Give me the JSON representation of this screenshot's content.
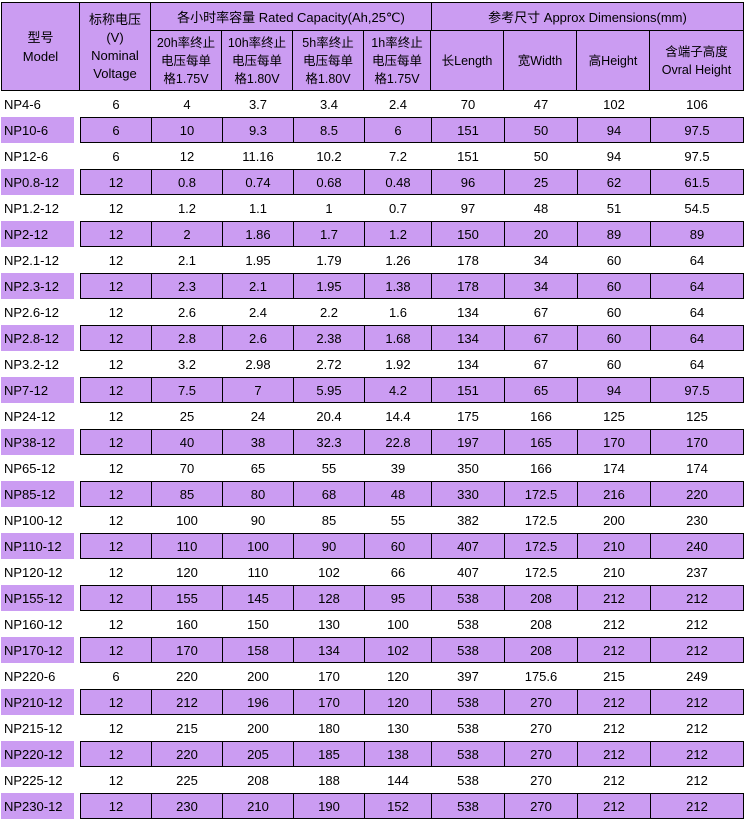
{
  "colors": {
    "row_highlight": "#cb9cf2",
    "header_background": "#cb9cf2",
    "border": "#000000",
    "text": "#000000",
    "page_background": "#ffffff"
  },
  "table": {
    "header": {
      "model": "型号\nModel",
      "voltage": "标称电压\n(V)\nNominal\nVoltage",
      "capacity_group": "各小时率容量 Rated Capacity(Ah,25℃)",
      "dimensions_group": "参考尺寸 Approx Dimensions(mm)",
      "capacity_columns": [
        "20h率终止\n电压每单\n格1.75V",
        "10h率终止\n电压每单\n格1.80V",
        "5h率终止\n电压每单\n格1.80V",
        "1h率终止\n电压每单\n格1.75V"
      ],
      "dimension_columns": [
        "长Length",
        "宽Width",
        "高Height",
        "含端子高度\nOvral Height"
      ]
    },
    "rows": [
      {
        "model": "NP4-6",
        "values": [
          "6",
          "4",
          "3.7",
          "3.4",
          "2.4",
          "70",
          "47",
          "102",
          "106"
        ]
      },
      {
        "model": "NP10-6",
        "values": [
          "6",
          "10",
          "9.3",
          "8.5",
          "6",
          "151",
          "50",
          "94",
          "97.5"
        ]
      },
      {
        "model": "NP12-6",
        "values": [
          "6",
          "12",
          "11.16",
          "10.2",
          "7.2",
          "151",
          "50",
          "94",
          "97.5"
        ]
      },
      {
        "model": "NP0.8-12",
        "values": [
          "12",
          "0.8",
          "0.74",
          "0.68",
          "0.48",
          "96",
          "25",
          "62",
          "61.5"
        ]
      },
      {
        "model": "NP1.2-12",
        "values": [
          "12",
          "1.2",
          "1.1",
          "1",
          "0.7",
          "97",
          "48",
          "51",
          "54.5"
        ]
      },
      {
        "model": "NP2-12",
        "values": [
          "12",
          "2",
          "1.86",
          "1.7",
          "1.2",
          "150",
          "20",
          "89",
          "89"
        ]
      },
      {
        "model": "NP2.1-12",
        "values": [
          "12",
          "2.1",
          "1.95",
          "1.79",
          "1.26",
          "178",
          "34",
          "60",
          "64"
        ]
      },
      {
        "model": "NP2.3-12",
        "values": [
          "12",
          "2.3",
          "2.1",
          "1.95",
          "1.38",
          "178",
          "34",
          "60",
          "64"
        ]
      },
      {
        "model": "NP2.6-12",
        "values": [
          "12",
          "2.6",
          "2.4",
          "2.2",
          "1.6",
          "134",
          "67",
          "60",
          "64"
        ]
      },
      {
        "model": "NP2.8-12",
        "values": [
          "12",
          "2.8",
          "2.6",
          "2.38",
          "1.68",
          "134",
          "67",
          "60",
          "64"
        ]
      },
      {
        "model": "NP3.2-12",
        "values": [
          "12",
          "3.2",
          "2.98",
          "2.72",
          "1.92",
          "134",
          "67",
          "60",
          "64"
        ]
      },
      {
        "model": "NP7-12",
        "values": [
          "12",
          "7.5",
          "7",
          "5.95",
          "4.2",
          "151",
          "65",
          "94",
          "97.5"
        ]
      },
      {
        "model": "NP24-12",
        "values": [
          "12",
          "25",
          "24",
          "20.4",
          "14.4",
          "175",
          "166",
          "125",
          "125"
        ]
      },
      {
        "model": "NP38-12",
        "values": [
          "12",
          "40",
          "38",
          "32.3",
          "22.8",
          "197",
          "165",
          "170",
          "170"
        ]
      },
      {
        "model": "NP65-12",
        "values": [
          "12",
          "70",
          "65",
          "55",
          "39",
          "350",
          "166",
          "174",
          "174"
        ]
      },
      {
        "model": "NP85-12",
        "values": [
          "12",
          "85",
          "80",
          "68",
          "48",
          "330",
          "172.5",
          "216",
          "220"
        ]
      },
      {
        "model": "NP100-12",
        "values": [
          "12",
          "100",
          "90",
          "85",
          "55",
          "382",
          "172.5",
          "200",
          "230"
        ]
      },
      {
        "model": "NP110-12",
        "values": [
          "12",
          "110",
          "100",
          "90",
          "60",
          "407",
          "172.5",
          "210",
          "240"
        ]
      },
      {
        "model": "NP120-12",
        "values": [
          "12",
          "120",
          "110",
          "102",
          "66",
          "407",
          "172.5",
          "210",
          "237"
        ]
      },
      {
        "model": "NP155-12",
        "values": [
          "12",
          "155",
          "145",
          "128",
          "95",
          "538",
          "208",
          "212",
          "212"
        ]
      },
      {
        "model": "NP160-12",
        "values": [
          "12",
          "160",
          "150",
          "130",
          "100",
          "538",
          "208",
          "212",
          "212"
        ]
      },
      {
        "model": "NP170-12",
        "values": [
          "12",
          "170",
          "158",
          "134",
          "102",
          "538",
          "208",
          "212",
          "212"
        ]
      },
      {
        "model": "NP220-6",
        "values": [
          "6",
          "220",
          "200",
          "170",
          "120",
          "397",
          "175.6",
          "215",
          "249"
        ]
      },
      {
        "model": "NP210-12",
        "values": [
          "12",
          "212",
          "196",
          "170",
          "120",
          "538",
          "270",
          "212",
          "212"
        ]
      },
      {
        "model": "NP215-12",
        "values": [
          "12",
          "215",
          "200",
          "180",
          "130",
          "538",
          "270",
          "212",
          "212"
        ]
      },
      {
        "model": "NP220-12",
        "values": [
          "12",
          "220",
          "205",
          "185",
          "138",
          "538",
          "270",
          "212",
          "212"
        ]
      },
      {
        "model": "NP225-12",
        "values": [
          "12",
          "225",
          "208",
          "188",
          "144",
          "538",
          "270",
          "212",
          "212"
        ]
      },
      {
        "model": "NP230-12",
        "values": [
          "12",
          "230",
          "210",
          "190",
          "152",
          "538",
          "270",
          "212",
          "212"
        ]
      }
    ]
  }
}
